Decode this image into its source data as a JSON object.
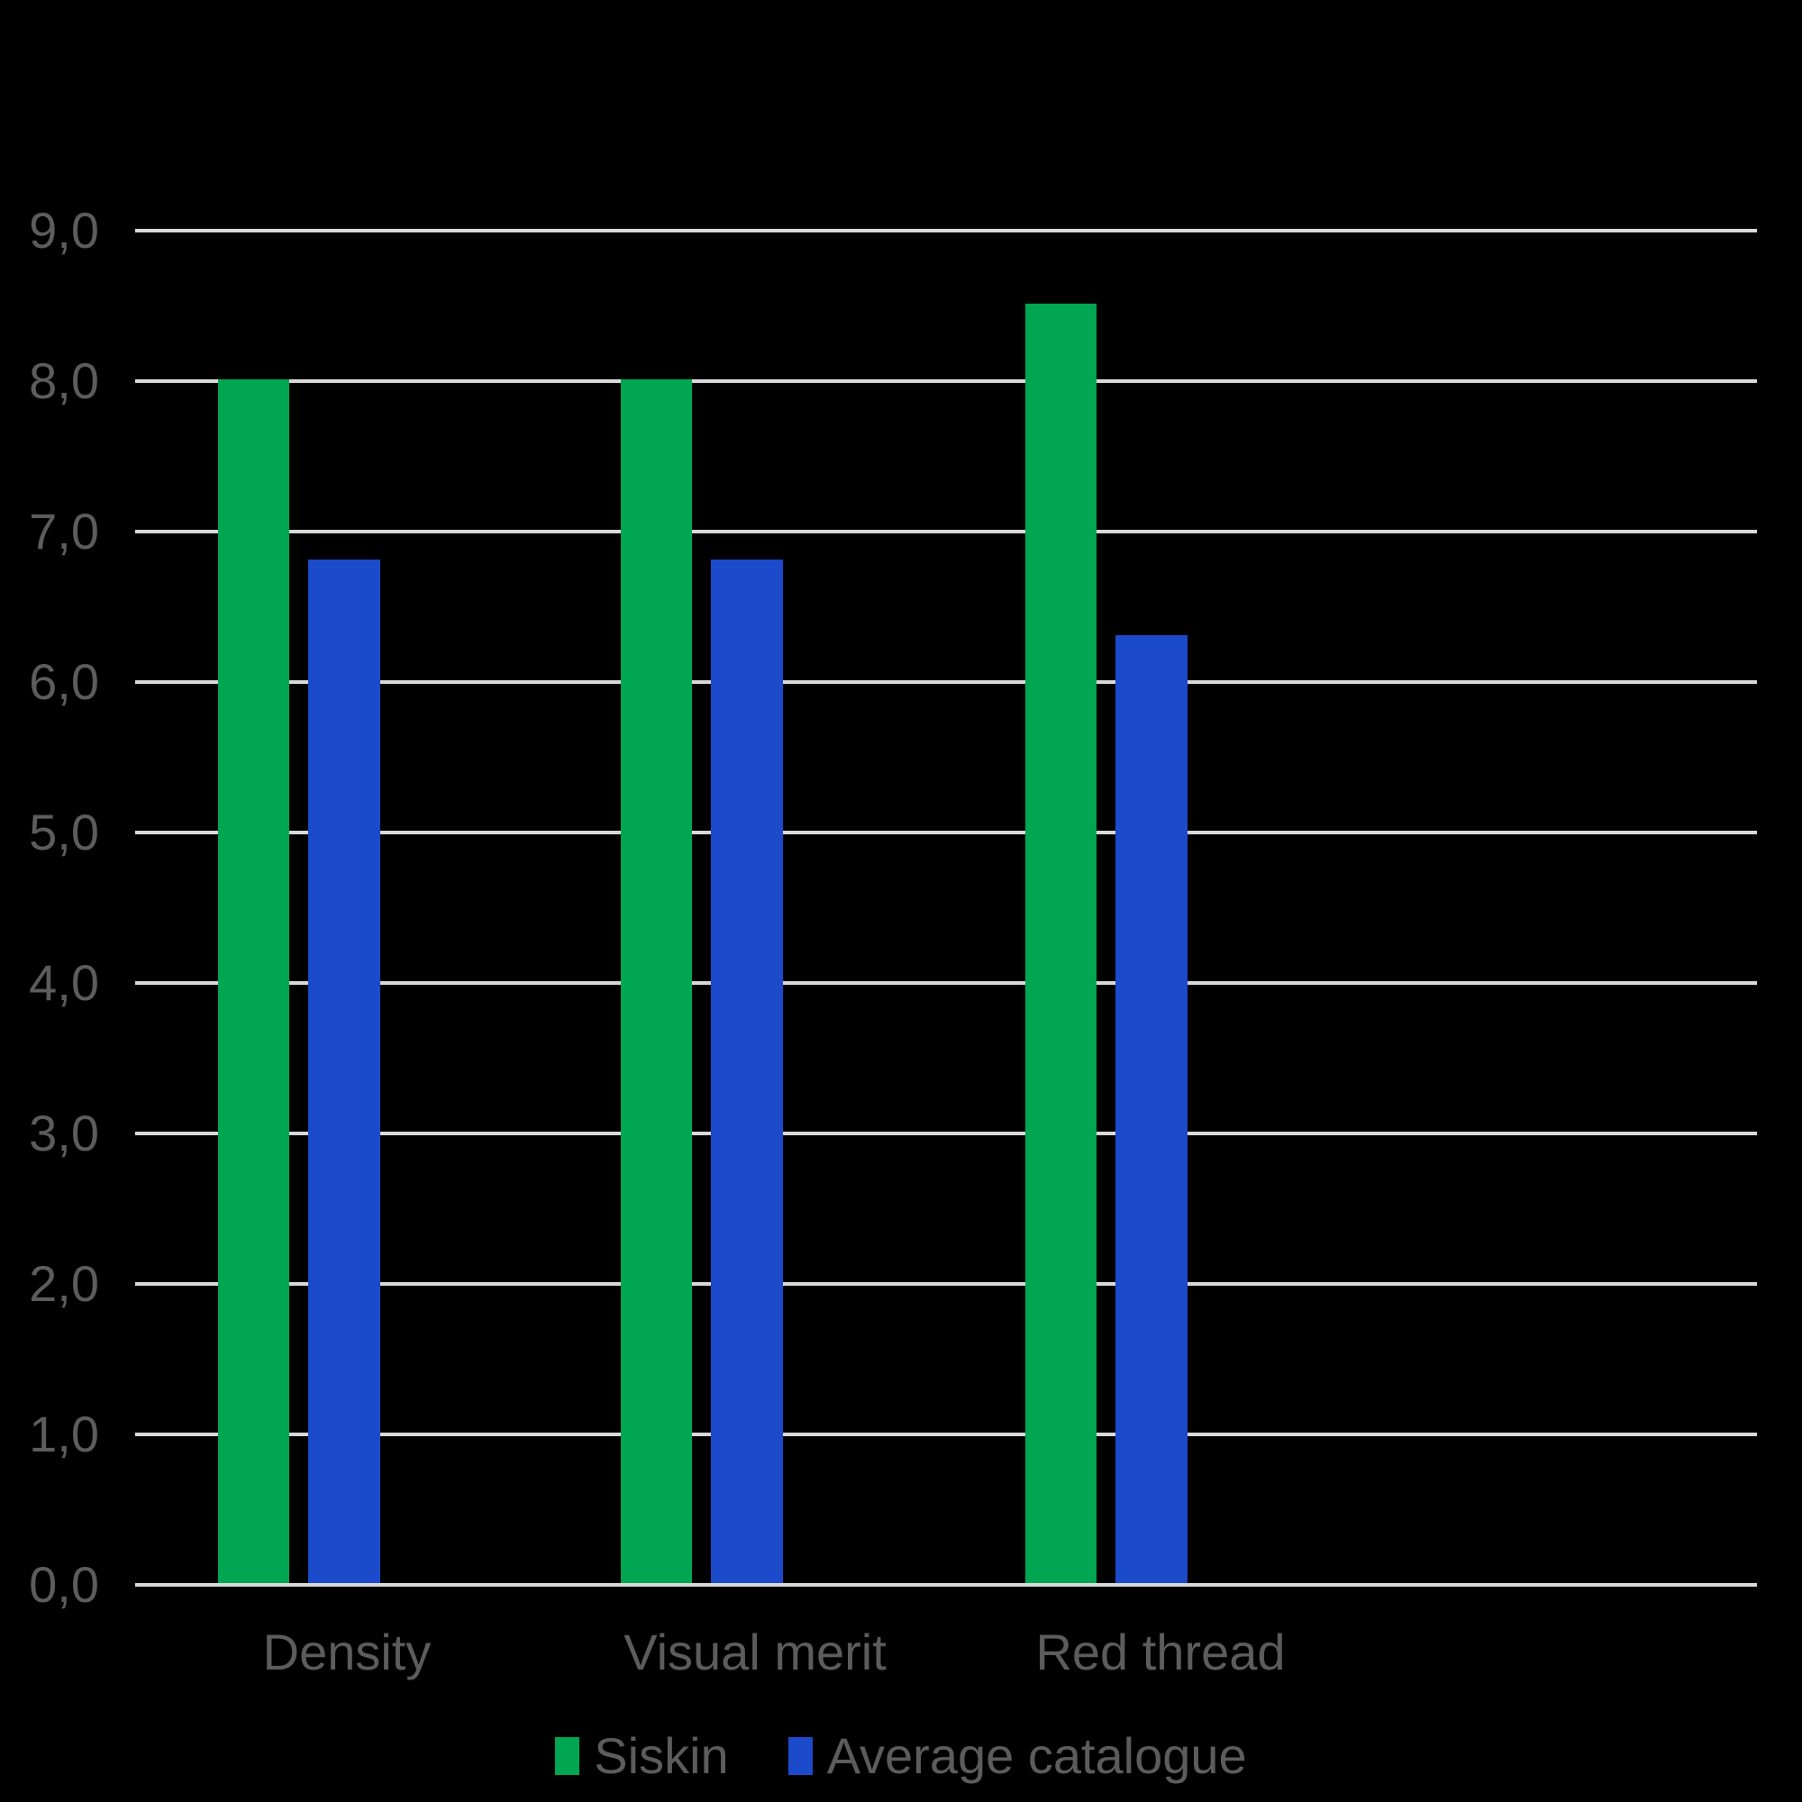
{
  "chart_data": {
    "type": "bar",
    "categories": [
      "Density",
      "Visual merit",
      "Red thread"
    ],
    "series": [
      {
        "name": "Siskin",
        "color": "#00A651",
        "values": [
          8.0,
          8.0,
          8.5
        ]
      },
      {
        "name": "Average catalogue",
        "color": "#1B4ACB",
        "values": [
          6.8,
          6.8,
          6.3
        ]
      }
    ],
    "ylim": [
      0,
      9
    ],
    "ytick_step": 1,
    "ytick_labels": [
      "0,0",
      "1,0",
      "2,0",
      "3,0",
      "4,0",
      "5,0",
      "6,0",
      "7,0",
      "8,0",
      "9,0"
    ],
    "grid": true,
    "legend_position": "bottom"
  },
  "colors": {
    "background": "#000000",
    "gridline": "#D9D9D9",
    "axis_text": "#5C5C5C"
  }
}
